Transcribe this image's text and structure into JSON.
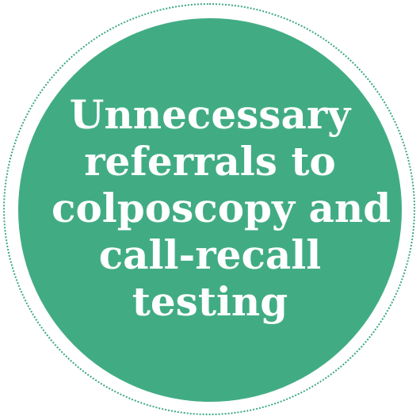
{
  "callout": {
    "lines": [
      "Unnecessary",
      "referrals to",
      "colposcopy and",
      "call-recall",
      "testing"
    ]
  },
  "colors": {
    "disc": "#41ac84",
    "ring": "#3ba882",
    "text": "#ffffff"
  }
}
